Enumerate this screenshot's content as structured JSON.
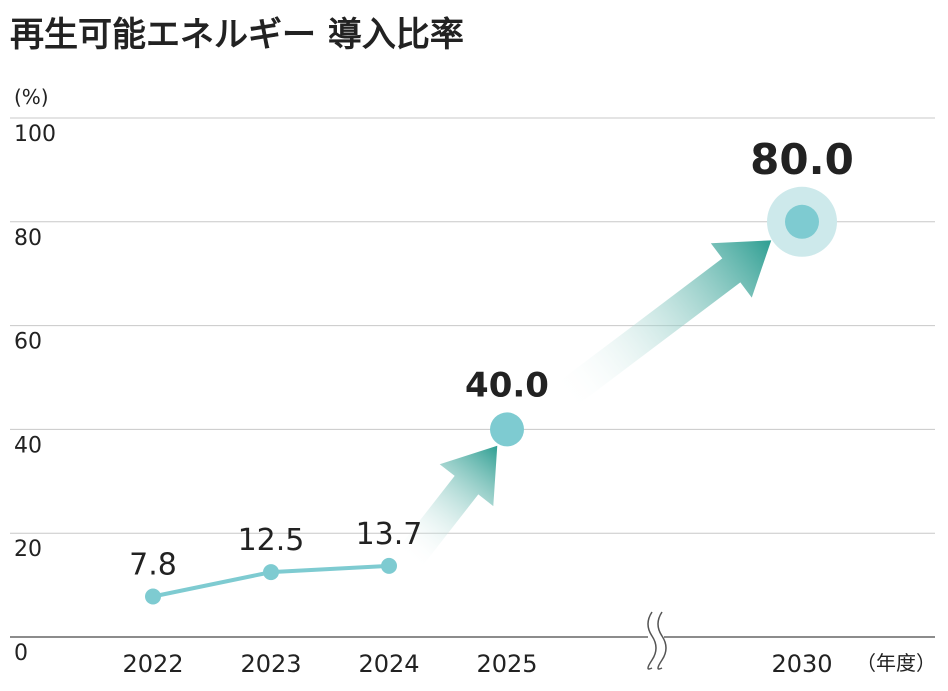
{
  "chart_data": {
    "type": "line",
    "title": "再生可能エネルギー 導入比率",
    "y_label": "(%)",
    "x_label": "（年度）",
    "categories": [
      "2022",
      "2023",
      "2024",
      "2025",
      "2030"
    ],
    "values": [
      7.8,
      12.5,
      13.7,
      40.0,
      80.0
    ],
    "value_labels": [
      "7.8",
      "12.5",
      "13.7",
      "40.0",
      "80.0"
    ],
    "color": "#7ecbd1",
    "highlight_color": "#3aaeb1",
    "ylim": [
      0,
      100
    ],
    "yticks": [
      0,
      20,
      40,
      60,
      80,
      100
    ],
    "grid": true
  }
}
